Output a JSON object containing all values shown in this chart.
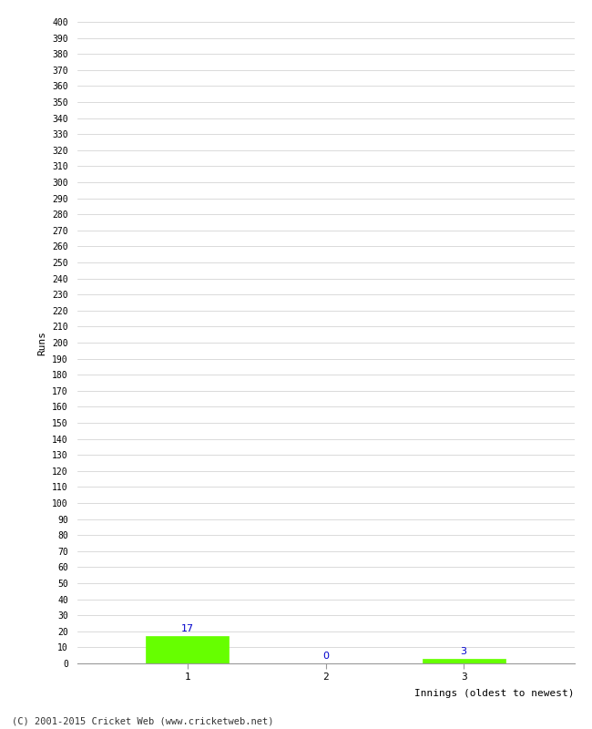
{
  "categories": [
    "1",
    "2",
    "3"
  ],
  "values": [
    17,
    0,
    3
  ],
  "bar_color": "#66ff00",
  "bar_edge_color": "#66ff00",
  "label_color": "#0000cc",
  "xlabel": "Innings (oldest to newest)",
  "ylabel": "Runs",
  "ylim": [
    0,
    400
  ],
  "ytick_step": 10,
  "background_color": "#ffffff",
  "grid_color": "#cccccc",
  "footer": "(C) 2001-2015 Cricket Web (www.cricketweb.net)"
}
